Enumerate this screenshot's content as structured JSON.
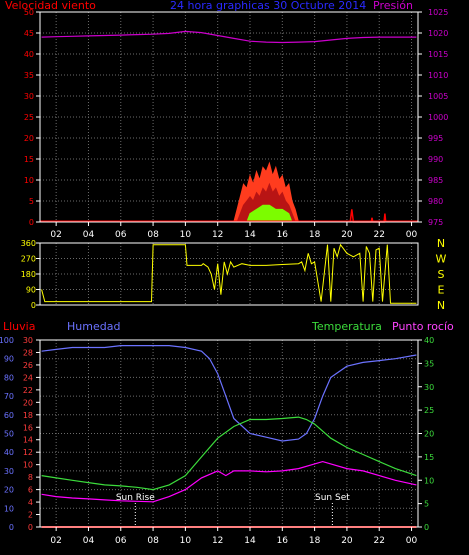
{
  "colors": {
    "background": "#000000",
    "frame": "#ffffff",
    "grid": "#6b6b6b",
    "wind_speed": "#ff0000",
    "wind_gust": "#ff3c1e",
    "wind_avg": "#7cfc00",
    "wind_low": "#ffffff",
    "pressure": "#cc00cc",
    "wind_dir": "#ffff00",
    "rain": "#ff0000",
    "humidity": "#6b72ff",
    "temperature": "#3cdc3c",
    "dewpoint": "#ff00ff",
    "sun_marker": "#ffffff"
  },
  "chart_data": [
    {
      "type": "area",
      "panel": "wind-pressure",
      "title": "24 hora graphicas   30 Octubre 2014",
      "left_label": "Velocidad viento",
      "right_label": "Presión",
      "x_ticks": [
        "02",
        "04",
        "06",
        "08",
        "10",
        "12",
        "14",
        "16",
        "18",
        "20",
        "22",
        "00"
      ],
      "x_hour_positions": [
        2,
        4,
        6,
        8,
        10,
        12,
        14,
        16,
        18,
        20,
        22,
        24
      ],
      "x_range_hours": [
        1,
        24.4
      ],
      "y_left_ticks": [
        "0",
        "5",
        "10",
        "15",
        "20",
        "25",
        "30",
        "35",
        "40",
        "45",
        "50"
      ],
      "y_left_range": [
        0,
        50
      ],
      "y_right_ticks": [
        "975",
        "980",
        "985",
        "990",
        "995",
        "1000",
        "1005",
        "1010",
        "1015",
        "1020",
        "1025"
      ],
      "y_right_range": [
        975,
        1026
      ],
      "series": [
        {
          "name": "Presión",
          "axis": "right",
          "x": [
            1.1,
            2,
            3,
            4,
            5,
            6,
            7,
            8,
            9,
            10,
            11,
            12,
            13,
            14,
            15,
            16,
            17,
            18,
            19,
            20,
            21,
            22,
            23,
            24.3
          ],
          "values": [
            1019.9,
            1020.0,
            1020.1,
            1020.2,
            1020.3,
            1020.4,
            1020.5,
            1020.6,
            1020.8,
            1021.3,
            1021.0,
            1020.3,
            1019.6,
            1018.9,
            1018.7,
            1018.6,
            1018.7,
            1018.8,
            1019.2,
            1019.6,
            1019.8,
            1019.9,
            1019.9,
            1019.9
          ]
        },
        {
          "name": "gust",
          "axis": "left",
          "x": [
            13.0,
            13.2,
            13.4,
            13.6,
            13.8,
            14.0,
            14.2,
            14.4,
            14.6,
            14.8,
            15.0,
            15.2,
            15.4,
            15.6,
            15.8,
            16.0,
            16.2,
            16.4,
            16.6,
            16.8,
            17.0
          ],
          "values": [
            0,
            3,
            6,
            9,
            8,
            11,
            9,
            12,
            10,
            13,
            12,
            14,
            11,
            13,
            10,
            11,
            8,
            9,
            5,
            3,
            0
          ]
        },
        {
          "name": "speed",
          "axis": "left",
          "x": [
            13.2,
            13.4,
            13.6,
            13.8,
            14.0,
            14.2,
            14.4,
            14.6,
            14.8,
            15.0,
            15.2,
            15.4,
            15.6,
            15.8,
            16.0,
            16.2,
            16.4,
            16.6,
            16.8
          ],
          "values": [
            0,
            2,
            4,
            5,
            6,
            5,
            7,
            6,
            8,
            7,
            9,
            7,
            8,
            6,
            7,
            5,
            4,
            2,
            0
          ]
        },
        {
          "name": "average",
          "axis": "left",
          "x": [
            13.8,
            14.0,
            14.4,
            14.8,
            15.2,
            15.6,
            16.0,
            16.4,
            16.6
          ],
          "values": [
            0,
            2,
            3,
            4,
            4,
            3,
            3,
            2,
            0
          ]
        },
        {
          "name": "late-spikes",
          "axis": "left",
          "x": [
            20.2,
            20.3,
            20.4,
            21.5,
            21.55,
            21.6,
            22.3,
            22.35,
            22.4
          ],
          "values": [
            0,
            3,
            0,
            0,
            1,
            0,
            0,
            2,
            0
          ]
        }
      ]
    },
    {
      "type": "line",
      "panel": "wind-direction",
      "x_range_hours": [
        1,
        24.4
      ],
      "y_left_ticks": [
        "0",
        "90",
        "180",
        "270",
        "360"
      ],
      "y_range": [
        0,
        360
      ],
      "compass_labels": [
        "N",
        "W",
        "S",
        "E",
        "N"
      ],
      "series": [
        {
          "name": "direction",
          "x": [
            1.1,
            1.3,
            1.4,
            7.9,
            8.0,
            10.0,
            10.1,
            11.0,
            11.1,
            11.4,
            11.6,
            11.8,
            12.0,
            12.2,
            12.4,
            12.6,
            12.8,
            13.0,
            13.5,
            14.0,
            15.0,
            16.0,
            17.0,
            17.2,
            17.4,
            17.5,
            17.6,
            17.8,
            18.0,
            18.4,
            18.8,
            19.0,
            19.2,
            19.4,
            19.6,
            20.0,
            20.4,
            20.8,
            21.0,
            21.2,
            21.4,
            21.6,
            21.8,
            22.0,
            22.2,
            22.5,
            22.7,
            23.0,
            23.2,
            24.3
          ],
          "values": [
            90,
            20,
            20,
            20,
            350,
            350,
            230,
            230,
            240,
            220,
            180,
            90,
            240,
            60,
            250,
            180,
            250,
            220,
            240,
            230,
            230,
            235,
            240,
            250,
            200,
            250,
            300,
            240,
            250,
            20,
            350,
            20,
            330,
            280,
            350,
            300,
            280,
            300,
            20,
            340,
            300,
            20,
            320,
            330,
            20,
            350,
            10,
            10,
            10,
            10
          ]
        }
      ]
    },
    {
      "type": "line",
      "panel": "rain-humidity-temp",
      "labels": {
        "rain": "Lluvia",
        "humidity": "Humedad",
        "temperature": "Temperatura",
        "dewpoint": "Punto rocío"
      },
      "x_ticks": [
        "02",
        "04",
        "06",
        "08",
        "10",
        "12",
        "14",
        "16",
        "18",
        "20",
        "22",
        "00"
      ],
      "x_hour_positions": [
        2,
        4,
        6,
        8,
        10,
        12,
        14,
        16,
        18,
        20,
        22,
        24
      ],
      "x_range_hours": [
        1,
        24.4
      ],
      "y_rain_ticks": [
        "0",
        "2",
        "4",
        "6",
        "8",
        "10",
        "12",
        "14",
        "16",
        "18",
        "20",
        "22",
        "24",
        "26",
        "28",
        "30"
      ],
      "y_rain_range": [
        0,
        30
      ],
      "y_humidity_ticks": [
        "0",
        "10",
        "20",
        "30",
        "40",
        "50",
        "60",
        "70",
        "80",
        "90",
        "100"
      ],
      "y_humidity_range": [
        0,
        100
      ],
      "y_temp_ticks": [
        "0",
        "5",
        "10",
        "15",
        "20",
        "25",
        "30",
        "35",
        "40"
      ],
      "y_temp_range": [
        0,
        40
      ],
      "sun_events": [
        {
          "label": "Sun Rise",
          "hour": 6.9
        },
        {
          "label": "Sun Set",
          "hour": 19.1
        }
      ],
      "series": [
        {
          "name": "Humedad",
          "axis": "humidity",
          "x": [
            1.1,
            2,
            3,
            4,
            5,
            6,
            7,
            8,
            9,
            10,
            11,
            11.5,
            12,
            12.5,
            13,
            14,
            15,
            16,
            17,
            17.5,
            18,
            18.5,
            19,
            20,
            21,
            22,
            23,
            24.3
          ],
          "values": [
            94,
            95,
            96,
            96,
            96,
            97,
            97,
            97,
            97,
            96,
            94,
            90,
            82,
            70,
            58,
            50,
            48,
            46,
            47,
            50,
            58,
            70,
            80,
            86,
            88,
            89,
            90,
            92
          ]
        },
        {
          "name": "Temperatura",
          "axis": "temperature",
          "x": [
            1.1,
            2,
            3,
            4,
            5,
            6,
            7,
            8,
            9,
            10,
            11,
            12,
            13,
            14,
            15,
            16,
            17,
            17.5,
            18,
            19,
            20,
            21,
            22,
            23,
            24.3
          ],
          "values": [
            11,
            10.5,
            10,
            9.5,
            9,
            8.8,
            8.5,
            8,
            9,
            11,
            15,
            19,
            21.5,
            23,
            23,
            23.2,
            23.5,
            23,
            22,
            19,
            17,
            15.5,
            14,
            12.5,
            11
          ]
        },
        {
          "name": "Punto rocío",
          "axis": "temperature",
          "x": [
            1.1,
            2,
            3,
            4,
            5,
            6,
            7,
            8,
            9,
            10,
            11,
            12,
            12.5,
            13,
            14,
            15,
            16,
            17,
            18,
            18.5,
            19,
            20,
            21,
            22,
            23,
            24.3
          ],
          "values": [
            7,
            6.5,
            6.2,
            6,
            5.8,
            5.6,
            5.5,
            5.4,
            6.5,
            8,
            10.5,
            12,
            11,
            12,
            12,
            11.8,
            12,
            12.5,
            13.5,
            14,
            13.5,
            12.5,
            12,
            11,
            10,
            9
          ]
        },
        {
          "name": "Lluvia",
          "axis": "rain",
          "x": [
            1.1,
            24.3
          ],
          "values": [
            0,
            0
          ]
        }
      ]
    }
  ]
}
